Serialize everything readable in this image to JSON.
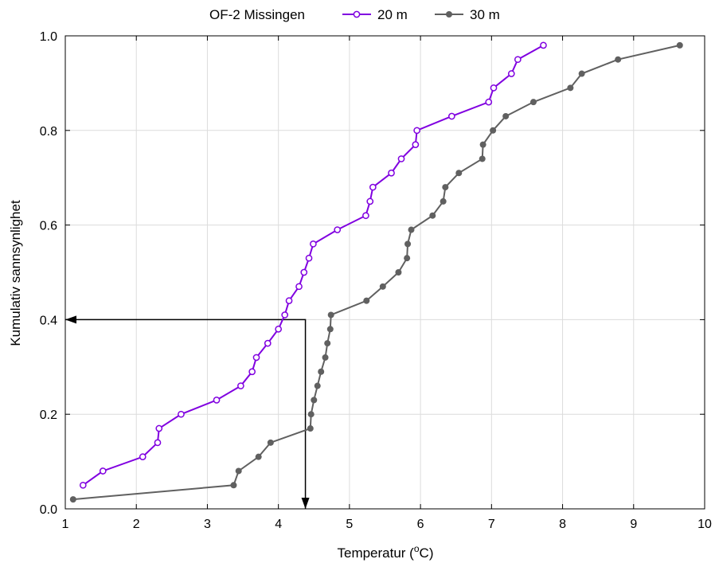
{
  "chart_data": {
    "type": "line",
    "title": "",
    "xlabel": "Temperatur (",
    "xlabel_sup": "o",
    "xlabel_unit": "C)",
    "ylabel": "Kumulativ sannsynlighet",
    "xlim": [
      1,
      10
    ],
    "ylim": [
      0.0,
      1.0
    ],
    "xticks": [
      1,
      2,
      3,
      4,
      5,
      6,
      7,
      8,
      9,
      10
    ],
    "xtick_labels": [
      "1",
      "2",
      "3",
      "4",
      "5",
      "6",
      "7",
      "8",
      "9",
      "10"
    ],
    "yticks": [
      0.0,
      0.2,
      0.4,
      0.6,
      0.8,
      1.0
    ],
    "ytick_labels": [
      "0.0",
      "0.2",
      "0.4",
      "0.6",
      "0.8",
      "1.0"
    ],
    "grid": true,
    "legend": {
      "placement": "top-center",
      "title": "OF-2 Missingen"
    },
    "series": [
      {
        "name": "20 m",
        "color": "#8000e0",
        "marker": "open-circle",
        "x": [
          1.25,
          1.53,
          2.09,
          2.3,
          2.32,
          2.63,
          3.13,
          3.47,
          3.63,
          3.69,
          3.85,
          4.0,
          4.09,
          4.15,
          4.29,
          4.36,
          4.43,
          4.49,
          4.83,
          5.23,
          5.29,
          5.33,
          5.59,
          5.73,
          5.93,
          5.95,
          6.44,
          6.96,
          7.03,
          7.28,
          7.37,
          7.73
        ],
        "y": [
          0.05,
          0.08,
          0.11,
          0.14,
          0.17,
          0.2,
          0.23,
          0.26,
          0.29,
          0.32,
          0.35,
          0.38,
          0.41,
          0.44,
          0.47,
          0.5,
          0.53,
          0.56,
          0.59,
          0.62,
          0.65,
          0.68,
          0.71,
          0.74,
          0.77,
          0.8,
          0.83,
          0.86,
          0.89,
          0.92,
          0.95,
          0.98
        ]
      },
      {
        "name": "30 m",
        "color": "#606060",
        "marker": "filled-circle",
        "x": [
          1.11,
          3.37,
          3.44,
          3.72,
          3.89,
          4.45,
          4.46,
          4.5,
          4.55,
          4.6,
          4.66,
          4.69,
          4.73,
          4.74,
          5.24,
          5.47,
          5.69,
          5.81,
          5.82,
          5.87,
          6.17,
          6.32,
          6.35,
          6.54,
          6.87,
          6.88,
          7.02,
          7.2,
          7.59,
          8.11,
          8.27,
          8.78,
          9.65
        ],
        "y": [
          0.02,
          0.05,
          0.08,
          0.11,
          0.14,
          0.17,
          0.2,
          0.23,
          0.26,
          0.29,
          0.32,
          0.35,
          0.38,
          0.41,
          0.44,
          0.47,
          0.5,
          0.53,
          0.56,
          0.59,
          0.62,
          0.65,
          0.68,
          0.71,
          0.74,
          0.77,
          0.8,
          0.83,
          0.86,
          0.89,
          0.92,
          0.95,
          0.98
        ]
      }
    ],
    "annotations": [
      {
        "type": "arrow-path",
        "color": "#000000",
        "points": [
          [
            4.38,
            0.0
          ],
          [
            4.38,
            0.4
          ],
          [
            1.0,
            0.4
          ]
        ],
        "arrowheads": "both-ends"
      }
    ]
  }
}
